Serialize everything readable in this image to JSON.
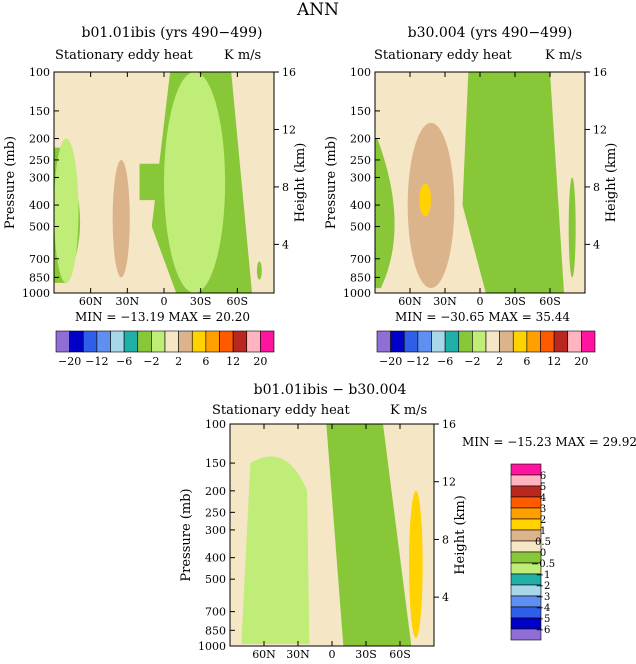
{
  "figure": {
    "title": "ANN"
  },
  "panels": [
    {
      "title": "b01.01ibis (yrs 490−499)",
      "subtitle": "Stationary eddy heat",
      "units": "K m/s",
      "min_max": "MIN = −13.19   MAX =  20.20"
    },
    {
      "title": "b30.004 (yrs 490−499)",
      "subtitle": "Stationary eddy heat",
      "units": "K m/s",
      "min_max": "MIN = −30.65   MAX =  35.44"
    },
    {
      "title": "b01.01ibis − b30.004",
      "subtitle": "Stationary eddy heat",
      "units": "K m/s",
      "min_max": "MIN = −15.23   MAX =  29.92"
    }
  ],
  "colors": {
    "model_scale": [
      "#8f6fd6",
      "#0000c8",
      "#2f5fe8",
      "#5f8ff0",
      "#a8d8e8",
      "#20b0a8",
      "#88c838",
      "#c0ec78",
      "#f5e6c6",
      "#dcb48c",
      "#ffd200",
      "#ffa000",
      "#ff5a00",
      "#b82820",
      "#ffb4c0",
      "#ff14a0"
    ],
    "diff_scale": [
      "#8f6fd6",
      "#0000c8",
      "#2f5fe8",
      "#5f8ff0",
      "#a8d8e8",
      "#20b0a8",
      "#c0ec78",
      "#88c838",
      "#f5e6c6",
      "#dcb48c",
      "#ffd200",
      "#ffa000",
      "#ff5a00",
      "#b82820",
      "#ffb4c0",
      "#ff14a0"
    ]
  },
  "chart_data": [
    {
      "type": "heatmap",
      "title": "b01.01ibis (yrs 490−499)",
      "subtitle": "Stationary eddy heat",
      "units": "K m/s",
      "xlabel": "",
      "ylabel": "Pressure (mb)",
      "y2label": "Height (km)",
      "x_ticks": [
        "60N",
        "30N",
        "0",
        "30S",
        "60S"
      ],
      "x_tick_values": [
        60,
        30,
        0,
        -30,
        -60
      ],
      "x_range": [
        90,
        -90
      ],
      "y_ticks": [
        "100",
        "150",
        "200",
        "250",
        "300",
        "400",
        "500",
        "700",
        "850",
        "1000"
      ],
      "y_tick_values": [
        100,
        150,
        200,
        250,
        300,
        400,
        500,
        700,
        850,
        1000
      ],
      "y_range": [
        100,
        1000
      ],
      "y_scale": "log",
      "y2_ticks": [
        "16",
        "12",
        "8",
        "4"
      ],
      "colorbar_labels": [
        "−20",
        "−12",
        "−6",
        "−2",
        "2",
        "6",
        "12",
        "20"
      ],
      "min": -13.19,
      "max": 20.2,
      "regions": [
        {
          "value": 1.0,
          "lat": [
            42,
            28
          ],
          "p": [
            250,
            850
          ],
          "label": "tan"
        },
        {
          "value": 3.0,
          "lat": [
            40,
            31
          ],
          "p": [
            330,
            470
          ],
          "label": "yellow core"
        },
        {
          "value": -0.5,
          "lat": [
            90,
            70
          ],
          "p": [
            200,
            900
          ],
          "label": "green"
        },
        {
          "value": -0.5,
          "lat": [
            0,
            -50
          ],
          "p": [
            100,
            1000
          ],
          "label": "green band"
        },
        {
          "value": -3.0,
          "lat": [
            -76,
            -80
          ],
          "p": [
            720,
            870
          ],
          "label": "teal"
        }
      ]
    },
    {
      "type": "heatmap",
      "title": "b30.004 (yrs 490−499)",
      "subtitle": "Stationary eddy heat",
      "units": "K m/s",
      "xlabel": "",
      "ylabel": "Pressure (mb)",
      "y2label": "Height (km)",
      "x_ticks": [
        "60N",
        "30N",
        "0",
        "30S",
        "60S"
      ],
      "x_tick_values": [
        60,
        30,
        0,
        -30,
        -60
      ],
      "x_range": [
        90,
        -90
      ],
      "y_ticks": [
        "100",
        "150",
        "200",
        "250",
        "300",
        "400",
        "500",
        "700",
        "850",
        "1000"
      ],
      "y_tick_values": [
        100,
        150,
        200,
        250,
        300,
        400,
        500,
        700,
        850,
        1000
      ],
      "y_range": [
        100,
        1000
      ],
      "y_scale": "log",
      "y2_ticks": [
        "16",
        "12",
        "8",
        "4"
      ],
      "colorbar_labels": [
        "−20",
        "−12",
        "−6",
        "−2",
        "2",
        "6",
        "12",
        "20"
      ],
      "min": -30.65,
      "max": 35.44,
      "regions": [
        {
          "value": 1.0,
          "lat": [
            62,
            22
          ],
          "p": [
            170,
            950
          ],
          "label": "tan"
        },
        {
          "value": 3.0,
          "lat": [
            57,
            30
          ],
          "p": [
            250,
            800
          ],
          "label": "yellow"
        },
        {
          "value": 6.0,
          "lat": [
            52,
            42
          ],
          "p": [
            320,
            450
          ],
          "label": "orange core"
        },
        {
          "value": -3.0,
          "lat": [
            -76,
            -82
          ],
          "p": [
            300,
            850
          ],
          "label": "teal"
        }
      ]
    },
    {
      "type": "heatmap",
      "title": "b01.01ibis − b30.004",
      "subtitle": "Stationary eddy heat",
      "units": "K m/s",
      "xlabel": "",
      "ylabel": "Pressure (mb)",
      "y2label": "Height (km)",
      "x_ticks": [
        "60N",
        "30N",
        "0",
        "30S",
        "60S"
      ],
      "x_tick_values": [
        60,
        30,
        0,
        -30,
        -60
      ],
      "x_range": [
        90,
        -90
      ],
      "y_ticks": [
        "100",
        "150",
        "200",
        "250",
        "300",
        "400",
        "500",
        "700",
        "850",
        "1000"
      ],
      "y_tick_values": [
        100,
        150,
        200,
        250,
        300,
        400,
        500,
        700,
        850,
        1000
      ],
      "y_range": [
        100,
        1000
      ],
      "y_scale": "log",
      "y2_ticks": [
        "16",
        "12",
        "8",
        "4"
      ],
      "colorbar_labels": [
        "−6",
        "−5",
        "−4",
        "−3",
        "−2",
        "−1",
        "−0.5",
        "0",
        "0.5",
        "1",
        "2",
        "3",
        "4",
        "5",
        "6"
      ],
      "min": -15.23,
      "max": 29.92,
      "regions": [
        {
          "value": -1.0,
          "lat": [
            58,
            33
          ],
          "p": [
            190,
            620
          ],
          "label": "teal"
        },
        {
          "value": -0.5,
          "lat": [
            72,
            22
          ],
          "p": [
            150,
            980
          ],
          "label": "light green"
        },
        {
          "value": 2.0,
          "lat": [
            -68,
            -80
          ],
          "p": [
            200,
            920
          ],
          "label": "yellow"
        }
      ]
    }
  ]
}
